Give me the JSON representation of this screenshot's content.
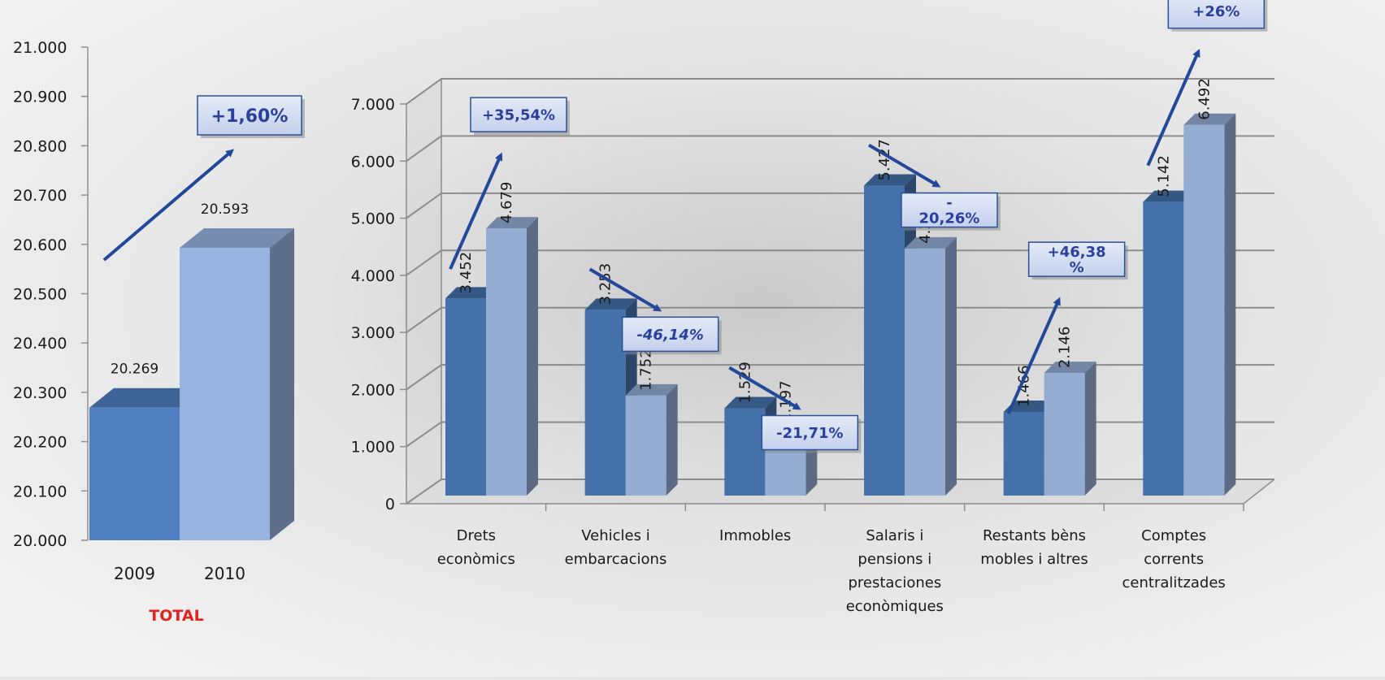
{
  "chart_data": [
    {
      "type": "bar",
      "title": "",
      "caption": "TOTAL",
      "categories": [
        "2009",
        "2010"
      ],
      "values": [
        20269,
        20593
      ],
      "value_labels": [
        "20.269",
        "20.593"
      ],
      "ylim": [
        20000,
        21000
      ],
      "yticks": [
        20000,
        20100,
        20200,
        20300,
        20400,
        20500,
        20600,
        20700,
        20800,
        20900,
        21000
      ],
      "ytick_labels": [
        "20.000",
        "20.100",
        "20.200",
        "20.300",
        "20.400",
        "20.500",
        "20.600",
        "20.700",
        "20.800",
        "20.900",
        "21.000"
      ],
      "change_label": "+1,60%",
      "colors": [
        "#4f7fc1",
        "#99b3e0"
      ],
      "grid": false
    },
    {
      "type": "bar",
      "title": "",
      "categories": [
        [
          "Drets",
          "econòmics"
        ],
        [
          "Vehicles i",
          "embarcacions"
        ],
        [
          "Immobles"
        ],
        [
          "Salaris i",
          "pensions i",
          "prestaciones",
          "econòmiques"
        ],
        [
          "Restants bèns",
          "mobles i altres"
        ],
        [
          "Comptes",
          "corrents",
          "centralitzades"
        ]
      ],
      "series": [
        {
          "values": [
            3452,
            3253,
            1529,
            5427,
            1466,
            5142
          ],
          "value_labels": [
            "3.452",
            "3.253",
            "1.529",
            "5.427",
            "1.466",
            "5.142"
          ],
          "color": "#4571aa"
        },
        {
          "values": [
            4679,
            1752,
            1197,
            4327,
            2146,
            6492
          ],
          "value_labels": [
            "4.679",
            "1.752",
            "1.197",
            "4.327",
            "2.146",
            "6.492"
          ],
          "color": "#95acd3"
        }
      ],
      "changes": [
        {
          "label": [
            "+35,54%"
          ],
          "direction": "up",
          "italic": false
        },
        {
          "label": [
            "-46,14%"
          ],
          "direction": "down",
          "italic": true
        },
        {
          "label": [
            "-21,71%"
          ],
          "direction": "down",
          "italic": false
        },
        {
          "label": [
            "-",
            "20,26%"
          ],
          "direction": "down",
          "italic": false
        },
        {
          "label": [
            "+46,38",
            "%"
          ],
          "direction": "up",
          "italic": false
        },
        {
          "label": [
            "+26%"
          ],
          "direction": "up",
          "italic": false
        }
      ],
      "ylim": [
        0,
        7000
      ],
      "yticks": [
        0,
        1000,
        2000,
        3000,
        4000,
        5000,
        6000,
        7000
      ],
      "ytick_labels": [
        "0",
        "1.000",
        "2.000",
        "3.000",
        "4.000",
        "5.000",
        "6.000",
        "7.000"
      ],
      "grid": true
    }
  ]
}
